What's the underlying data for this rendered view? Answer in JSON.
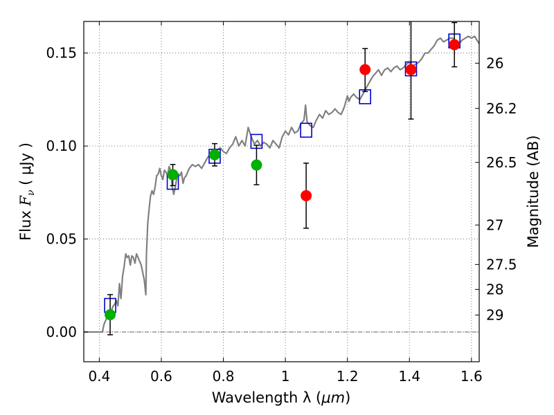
{
  "chart_data": {
    "type": "scatter",
    "xlabel_text": "Wavelength  λ (",
    "xlabel_unit": "μm",
    "xlabel_close": ")",
    "ylabel_prefix": "Flux  ",
    "ylabel_sym": "F",
    "ylabel_sub": "ν",
    "ylabel_unit": " (  μJy )",
    "ylabel_right": "Magnitude (AB)",
    "xlim": [
      0.35,
      1.625
    ],
    "ylim": [
      -0.016,
      0.167
    ],
    "x_ticks": [
      {
        "v": 0.4,
        "label": "0.4"
      },
      {
        "v": 0.6,
        "label": "0.6"
      },
      {
        "v": 0.8,
        "label": "0.8"
      },
      {
        "v": 1.0,
        "label": "1"
      },
      {
        "v": 1.2,
        "label": "1.2"
      },
      {
        "v": 1.4,
        "label": "1.4"
      },
      {
        "v": 1.6,
        "label": "1.6"
      }
    ],
    "y_ticks": [
      {
        "v": 0.0,
        "label": "0.00"
      },
      {
        "v": 0.05,
        "label": "0.05"
      },
      {
        "v": 0.1,
        "label": "0.10"
      },
      {
        "v": 0.15,
        "label": "0.15"
      }
    ],
    "mag_ticks": [
      {
        "mag": 26,
        "label": "26"
      },
      {
        "mag": 26.2,
        "label": "26.2"
      },
      {
        "mag": 26.5,
        "label": "26.5"
      },
      {
        "mag": 27,
        "label": "27"
      },
      {
        "mag": 27.5,
        "label": "27.5"
      },
      {
        "mag": 28,
        "label": "28"
      },
      {
        "mag": 29,
        "label": "29"
      }
    ],
    "grid": true,
    "zero_line": true,
    "colors": {
      "model": "#808080",
      "boxes": "#0000cc",
      "green": "#00b000",
      "red": "#ff0000",
      "errorbar": "#000000",
      "grid": "#555555"
    },
    "model_spectrum": [
      [
        0.35,
        0.0
      ],
      [
        0.4,
        0.0
      ],
      [
        0.41,
        0.0
      ],
      [
        0.415,
        0.004
      ],
      [
        0.42,
        0.006
      ],
      [
        0.425,
        0.008
      ],
      [
        0.43,
        0.009
      ],
      [
        0.435,
        0.011
      ],
      [
        0.44,
        0.012
      ],
      [
        0.445,
        0.014
      ],
      [
        0.45,
        0.015
      ],
      [
        0.455,
        0.017
      ],
      [
        0.46,
        0.014
      ],
      [
        0.465,
        0.026
      ],
      [
        0.47,
        0.018
      ],
      [
        0.475,
        0.03
      ],
      [
        0.48,
        0.035
      ],
      [
        0.485,
        0.042
      ],
      [
        0.49,
        0.04
      ],
      [
        0.495,
        0.041
      ],
      [
        0.5,
        0.036
      ],
      [
        0.505,
        0.041
      ],
      [
        0.51,
        0.04
      ],
      [
        0.515,
        0.037
      ],
      [
        0.52,
        0.042
      ],
      [
        0.525,
        0.04
      ],
      [
        0.53,
        0.038
      ],
      [
        0.535,
        0.036
      ],
      [
        0.54,
        0.032
      ],
      [
        0.545,
        0.028
      ],
      [
        0.55,
        0.02
      ],
      [
        0.552,
        0.042
      ],
      [
        0.556,
        0.058
      ],
      [
        0.56,
        0.065
      ],
      [
        0.565,
        0.073
      ],
      [
        0.57,
        0.076
      ],
      [
        0.575,
        0.074
      ],
      [
        0.58,
        0.078
      ],
      [
        0.585,
        0.084
      ],
      [
        0.59,
        0.085
      ],
      [
        0.595,
        0.088
      ],
      [
        0.6,
        0.084
      ],
      [
        0.605,
        0.082
      ],
      [
        0.61,
        0.087
      ],
      [
        0.615,
        0.086
      ],
      [
        0.62,
        0.084
      ],
      [
        0.625,
        0.089
      ],
      [
        0.63,
        0.087
      ],
      [
        0.635,
        0.078
      ],
      [
        0.64,
        0.074
      ],
      [
        0.645,
        0.078
      ],
      [
        0.65,
        0.083
      ],
      [
        0.655,
        0.085
      ],
      [
        0.66,
        0.084
      ],
      [
        0.665,
        0.086
      ],
      [
        0.67,
        0.08
      ],
      [
        0.675,
        0.083
      ],
      [
        0.68,
        0.084
      ],
      [
        0.69,
        0.088
      ],
      [
        0.7,
        0.09
      ],
      [
        0.71,
        0.089
      ],
      [
        0.72,
        0.09
      ],
      [
        0.73,
        0.088
      ],
      [
        0.74,
        0.091
      ],
      [
        0.75,
        0.094
      ],
      [
        0.76,
        0.096
      ],
      [
        0.77,
        0.095
      ],
      [
        0.78,
        0.098
      ],
      [
        0.79,
        0.099
      ],
      [
        0.8,
        0.097
      ],
      [
        0.81,
        0.096
      ],
      [
        0.82,
        0.099
      ],
      [
        0.83,
        0.101
      ],
      [
        0.84,
        0.105
      ],
      [
        0.85,
        0.1
      ],
      [
        0.86,
        0.103
      ],
      [
        0.87,
        0.1
      ],
      [
        0.88,
        0.11
      ],
      [
        0.89,
        0.105
      ],
      [
        0.9,
        0.101
      ],
      [
        0.91,
        0.103
      ],
      [
        0.92,
        0.1
      ],
      [
        0.93,
        0.102
      ],
      [
        0.94,
        0.101
      ],
      [
        0.95,
        0.099
      ],
      [
        0.96,
        0.103
      ],
      [
        0.97,
        0.101
      ],
      [
        0.98,
        0.099
      ],
      [
        0.99,
        0.105
      ],
      [
        1.0,
        0.108
      ],
      [
        1.01,
        0.106
      ],
      [
        1.02,
        0.11
      ],
      [
        1.03,
        0.107
      ],
      [
        1.04,
        0.108
      ],
      [
        1.05,
        0.112
      ],
      [
        1.06,
        0.114
      ],
      [
        1.065,
        0.122
      ],
      [
        1.07,
        0.113
      ],
      [
        1.08,
        0.111
      ],
      [
        1.09,
        0.11
      ],
      [
        1.1,
        0.114
      ],
      [
        1.11,
        0.117
      ],
      [
        1.12,
        0.115
      ],
      [
        1.13,
        0.119
      ],
      [
        1.14,
        0.117
      ],
      [
        1.15,
        0.118
      ],
      [
        1.16,
        0.12
      ],
      [
        1.17,
        0.118
      ],
      [
        1.18,
        0.117
      ],
      [
        1.19,
        0.121
      ],
      [
        1.2,
        0.127
      ],
      [
        1.205,
        0.124
      ],
      [
        1.21,
        0.126
      ],
      [
        1.22,
        0.128
      ],
      [
        1.23,
        0.126
      ],
      [
        1.24,
        0.125
      ],
      [
        1.25,
        0.128
      ],
      [
        1.26,
        0.131
      ],
      [
        1.27,
        0.134
      ],
      [
        1.28,
        0.137
      ],
      [
        1.29,
        0.139
      ],
      [
        1.3,
        0.141
      ],
      [
        1.31,
        0.138
      ],
      [
        1.32,
        0.141
      ],
      [
        1.33,
        0.142
      ],
      [
        1.34,
        0.14
      ],
      [
        1.35,
        0.142
      ],
      [
        1.36,
        0.143
      ],
      [
        1.37,
        0.141
      ],
      [
        1.38,
        0.142
      ],
      [
        1.39,
        0.144
      ],
      [
        1.4,
        0.145
      ],
      [
        1.41,
        0.143
      ],
      [
        1.42,
        0.144
      ],
      [
        1.43,
        0.145
      ],
      [
        1.44,
        0.147
      ],
      [
        1.45,
        0.15
      ],
      [
        1.46,
        0.15
      ],
      [
        1.47,
        0.152
      ],
      [
        1.48,
        0.154
      ],
      [
        1.49,
        0.157
      ],
      [
        1.5,
        0.158
      ],
      [
        1.51,
        0.156
      ],
      [
        1.52,
        0.157
      ],
      [
        1.53,
        0.158
      ],
      [
        1.54,
        0.158
      ],
      [
        1.55,
        0.156
      ],
      [
        1.56,
        0.155
      ],
      [
        1.57,
        0.157
      ],
      [
        1.58,
        0.158
      ],
      [
        1.59,
        0.159
      ],
      [
        1.6,
        0.158
      ],
      [
        1.61,
        0.159
      ],
      [
        1.625,
        0.155
      ]
    ],
    "model_boxes": [
      {
        "x": 0.435,
        "y": 0.0143
      },
      {
        "x": 0.637,
        "y": 0.0805
      },
      {
        "x": 0.772,
        "y": 0.0945
      },
      {
        "x": 0.907,
        "y": 0.1025
      },
      {
        "x": 1.067,
        "y": 0.1085
      },
      {
        "x": 1.257,
        "y": 0.1265
      },
      {
        "x": 1.405,
        "y": 0.1415
      },
      {
        "x": 1.545,
        "y": 0.1565
      }
    ],
    "green_points": [
      {
        "x": 0.435,
        "y": 0.0093,
        "ylo": -0.0015,
        "yhi": 0.0201
      },
      {
        "x": 0.637,
        "y": 0.0846,
        "ylo": 0.0787,
        "yhi": 0.0901
      },
      {
        "x": 0.772,
        "y": 0.0953,
        "ylo": 0.0893,
        "yhi": 0.1013
      },
      {
        "x": 0.907,
        "y": 0.0898,
        "ylo": 0.0792,
        "yhi": 0.1004
      }
    ],
    "red_points": [
      {
        "x": 1.067,
        "y": 0.0733,
        "ylo": 0.0558,
        "yhi": 0.0908
      },
      {
        "x": 1.257,
        "y": 0.1411,
        "ylo": 0.1293,
        "yhi": 0.1524
      },
      {
        "x": 1.405,
        "y": 0.1411,
        "ylo": 0.1145,
        "yhi": 0.1677
      },
      {
        "x": 1.545,
        "y": 0.1545,
        "ylo": 0.1426,
        "yhi": 0.1664
      }
    ]
  }
}
